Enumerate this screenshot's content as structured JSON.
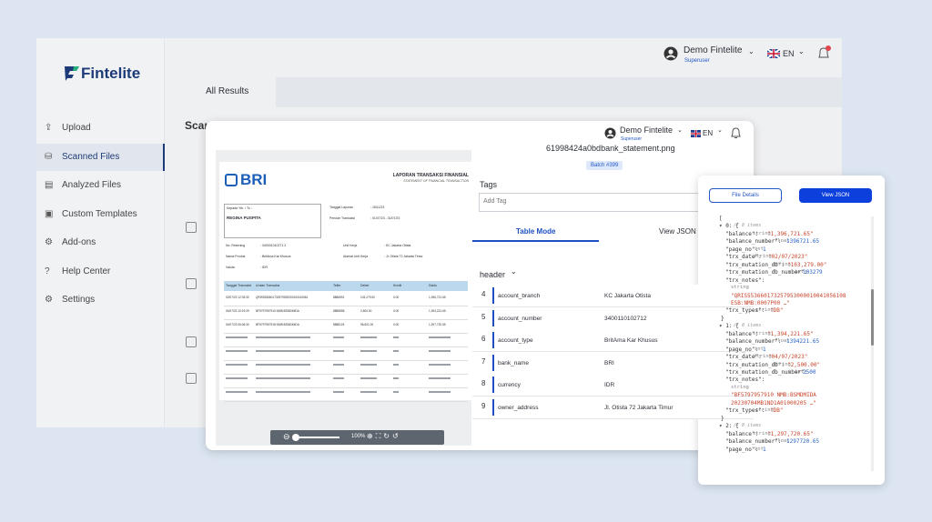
{
  "app": {
    "brand": "Fintelite",
    "user": {
      "name": "Demo Fintelite",
      "role": "Superuser",
      "language": "EN"
    },
    "tab": "All Results",
    "menu": [
      "Upload",
      "Scanned Files",
      "Analyzed Files",
      "Custom Templates",
      "Add-ons",
      "Help Center",
      "Settings"
    ],
    "active_menu": 1
  },
  "viewer": {
    "file_name": "61998424a0bdbank_statement.png",
    "batch": "Batch #399",
    "tags_label": "Tags",
    "tags_placeholder": "Add Tag",
    "tabs": [
      "Table Mode",
      "View JSON"
    ],
    "section": "header",
    "zoom": "100%",
    "rows": [
      {
        "index": "4",
        "key": "account_branch",
        "value": "KC Jakarta Otista"
      },
      {
        "index": "5",
        "key": "account_number",
        "value": "3400110102712"
      },
      {
        "index": "6",
        "key": "account_type",
        "value": "BritAma Kar Khusus"
      },
      {
        "index": "7",
        "key": "bank_name",
        "value": "BRI"
      },
      {
        "index": "8",
        "key": "currency",
        "value": "IDR"
      },
      {
        "index": "9",
        "key": "owner_address",
        "value": "Jl. Otista 72 Jakarta Timur"
      }
    ],
    "document": {
      "bank": "BRI",
      "title": "LAPORAN TRANSAKSI FINANSIAL",
      "subtitle": "STATEMENT OF FINANCIAL TRANSACTION",
      "to_label": "Kepada Yth. / To :",
      "customer": "REGINA PUSPITA",
      "fields_left": [
        [
          "No. Rekening",
          ": 340001010271 2"
        ],
        [
          "Nama Produk",
          ": BritAma Kar Khusus"
        ],
        [
          "Valuta",
          ": IDR"
        ]
      ],
      "fields_right": [
        [
          "Tanggal Laporan",
          ": 15/11/23"
        ],
        [
          "Periode Transaksi",
          ": 01/07/23 - 31/07/23"
        ],
        [
          "Unit Kerja",
          ": KC Jakarta Otista"
        ],
        [
          "Alamat Unit Kerja",
          ": Jl. Otista 72 Jakarta Timur"
        ]
      ],
      "columns": [
        "Tanggal Transaksi",
        "Uraian Transaksi",
        "Teller",
        "Debet",
        "Kredit",
        "Saldo"
      ],
      "transactions": [
        [
          "02/07/23 12:33:30",
          "QRIS5536601732579530000100410561",
          "8886591",
          "103,279.00",
          "0.00",
          "1,396,721.65"
        ],
        [
          "04/07/23 10:19:29",
          "BF5797957910 NMB:BSMDMIDA",
          "8888558",
          "2,500.00",
          "0.00",
          "1,394,221.65"
        ],
        [
          "04/07/23 06:06:30",
          "BF5797957918 NMB:BSMDMIDA",
          "8888124",
          "96,501.00",
          "0.00",
          "1,297,720.65"
        ]
      ]
    }
  },
  "json_panel": {
    "buttons": [
      "File Details",
      "View JSON"
    ],
    "lines": [
      {
        "bracket": "["
      },
      {
        "open": "▾ 0: {",
        "note": "// 8 items"
      },
      {
        "key": "\"balance\":",
        "type": "string",
        "value": "\"1,396,721.65\""
      },
      {
        "key": "\"balance_number\":",
        "type": "float",
        "value": "1396721.65"
      },
      {
        "key": "\"page_no\":",
        "type": "int",
        "value": "1"
      },
      {
        "key": "\"trx_date\":",
        "type": "string",
        "value": "\"02/07/2023\""
      },
      {
        "key": "\"trx_mutation_db\":",
        "type": "string",
        "value": "\"103,279.00\""
      },
      {
        "key": "\"trx_mutation_db_number\":",
        "type": "int",
        "value": "103279"
      },
      {
        "key": "\"trx_notes\":"
      },
      {
        "type": "string"
      },
      {
        "value": "\"QRIS553660173257953000010041056108"
      },
      {
        "value": "ESB:NMB:0007P00 …\""
      },
      {
        "key": "\"trx_types\":",
        "type": "string",
        "value": "\"DB\""
      },
      {
        "bracket": "}"
      },
      {
        "open": "▾ 1: {",
        "note": "// 8 items"
      },
      {
        "key": "\"balance\":",
        "type": "string",
        "value": "\"1,394,221.65\""
      },
      {
        "key": "\"balance_number\":",
        "type": "float",
        "value": "1394221.65"
      },
      {
        "key": "\"page_no\":",
        "type": "int",
        "value": "1"
      },
      {
        "key": "\"trx_date\":",
        "type": "string",
        "value": "\"04/07/2023\""
      },
      {
        "key": "\"trx_mutation_db\":",
        "type": "string",
        "value": "\"2,500.00\""
      },
      {
        "key": "\"trx_mutation_db_number\":",
        "type": "int",
        "value": "2500"
      },
      {
        "key": "\"trx_notes\":"
      },
      {
        "type": "string"
      },
      {
        "value": "\"BF5797957910 NMB:BSMDMIDA"
      },
      {
        "value": "20230704MB1ND1A01000205 …\""
      },
      {
        "key": "\"trx_types\":",
        "type": "string",
        "value": "\"DB\""
      },
      {
        "bracket": "}"
      },
      {
        "open": "▾ 2: {",
        "note": "// 8 items"
      },
      {
        "key": "\"balance\":",
        "type": "string",
        "value": "\"1,297,720.65\""
      },
      {
        "key": "\"balance_number\":",
        "type": "float",
        "value": "1297720.65"
      },
      {
        "key": "\"page_no\":",
        "type": "int",
        "value": "1"
      }
    ]
  }
}
